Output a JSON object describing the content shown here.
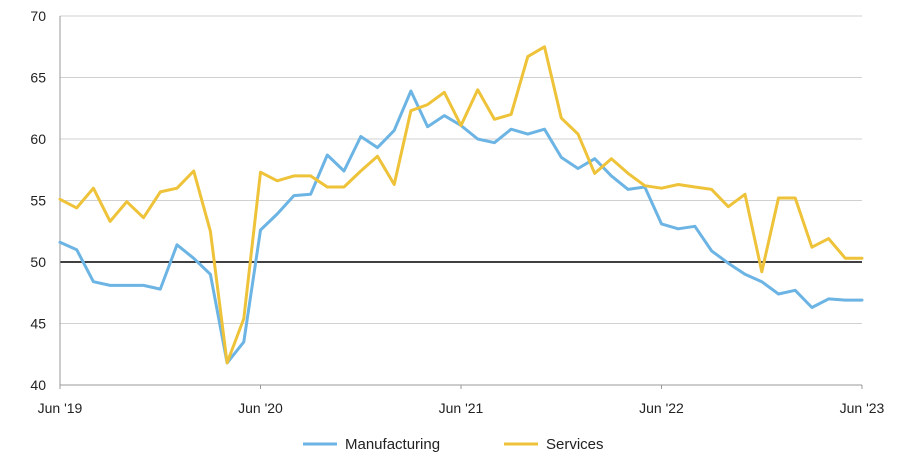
{
  "chart_data": {
    "type": "line",
    "title": "",
    "xlabel": "",
    "ylabel": "",
    "ylim": [
      40,
      70
    ],
    "yticks": [
      40,
      45,
      50,
      55,
      60,
      65,
      70
    ],
    "xticks": [
      "Jun '19",
      "Jun '20",
      "Jun '21",
      "Jun '22",
      "Jun '23"
    ],
    "reference_line": 50,
    "grid": "horizontal",
    "legend_position": "bottom",
    "x": [
      "Jun '19",
      "Jul '19",
      "Aug '19",
      "Sep '19",
      "Oct '19",
      "Nov '19",
      "Dec '19",
      "Jan '20",
      "Feb '20",
      "Mar '20",
      "Apr '20",
      "May '20",
      "Jun '20",
      "Jul '20",
      "Aug '20",
      "Sep '20",
      "Oct '20",
      "Nov '20",
      "Dec '20",
      "Jan '21",
      "Feb '21",
      "Mar '21",
      "Apr '21",
      "May '21",
      "Jun '21",
      "Jul '21",
      "Aug '21",
      "Sep '21",
      "Oct '21",
      "Nov '21",
      "Dec '21",
      "Jan '22",
      "Feb '22",
      "Mar '22",
      "Apr '22",
      "May '22",
      "Jun '22",
      "Jul '22",
      "Aug '22",
      "Sep '22",
      "Oct '22",
      "Nov '22",
      "Dec '22",
      "Jan '23",
      "Feb '23",
      "Mar '23",
      "Apr '23",
      "May '23",
      "Jun '23"
    ],
    "series": [
      {
        "name": "Manufacturing",
        "color": "#6cb4e4",
        "values": [
          51.6,
          51.0,
          48.4,
          48.1,
          48.1,
          48.1,
          47.8,
          51.4,
          50.3,
          49.0,
          41.8,
          43.5,
          52.6,
          53.9,
          55.4,
          55.5,
          58.7,
          57.4,
          60.2,
          59.3,
          60.7,
          63.9,
          61.0,
          61.9,
          61.1,
          60.0,
          59.7,
          60.8,
          60.4,
          60.8,
          58.5,
          57.6,
          58.4,
          57.0,
          55.9,
          56.1,
          53.1,
          52.7,
          52.9,
          50.9,
          49.9,
          49.0,
          48.4,
          47.4,
          47.7,
          46.3,
          47.0,
          46.9,
          46.9
        ]
      },
      {
        "name": "Services",
        "color": "#eec33a",
        "values": [
          55.1,
          54.4,
          56.0,
          53.3,
          54.9,
          53.6,
          55.7,
          56.0,
          57.4,
          52.5,
          41.8,
          45.4,
          57.3,
          56.6,
          57.0,
          57.0,
          56.1,
          56.1,
          57.4,
          58.6,
          56.3,
          62.3,
          62.8,
          63.8,
          61.1,
          64.0,
          61.6,
          62.0,
          66.7,
          67.5,
          61.7,
          60.4,
          57.2,
          58.4,
          57.2,
          56.2,
          56.0,
          56.3,
          56.1,
          55.9,
          54.5,
          55.5,
          49.2,
          55.2,
          55.2,
          51.2,
          51.9,
          50.3,
          50.3
        ]
      }
    ]
  }
}
